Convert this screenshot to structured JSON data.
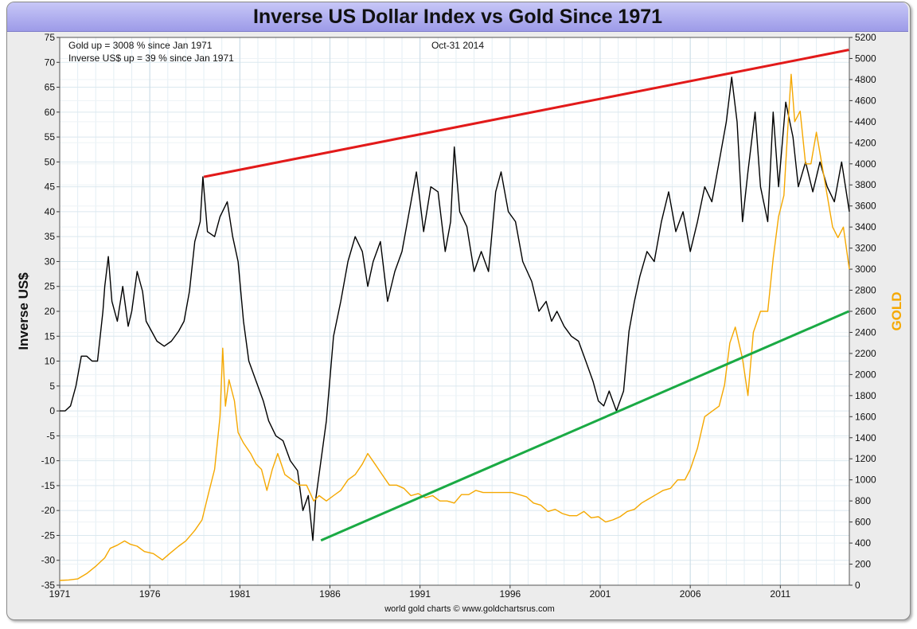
{
  "chart_data": {
    "type": "line",
    "title": "Inverse US Dollar Index vs Gold Since 1971",
    "ylabel_left": "Inverse US$",
    "ylabel_right": "GOLD",
    "ylim_left": [
      -35,
      75
    ],
    "ylim_right": [
      0,
      5200
    ],
    "yticks_left": [
      "75",
      "70",
      "65",
      "60",
      "55",
      "50",
      "45",
      "40",
      "35",
      "30",
      "25",
      "20",
      "15",
      "10",
      "5",
      "0",
      "-5",
      "-10",
      "-15",
      "-20",
      "-25",
      "-30",
      "-35"
    ],
    "yticks_right": [
      "5200",
      "5000",
      "4800",
      "4600",
      "4400",
      "4200",
      "4000",
      "3800",
      "3600",
      "3400",
      "3200",
      "3000",
      "2800",
      "2600",
      "2400",
      "2200",
      "2000",
      "1800",
      "1600",
      "1400",
      "1200",
      "1000",
      "800",
      "600",
      "400",
      "200",
      "0"
    ],
    "xlim": [
      1971,
      2014.83
    ],
    "xticks": [
      "1971",
      "1976",
      "1981",
      "1986",
      "1991",
      "1996",
      "2001",
      "2006",
      "2011"
    ],
    "grid": true,
    "annotations": {
      "line1": "Gold up = 3008 % since Jan 1971",
      "line2": "Inverse US$ up = 39 % since Jan 1971",
      "date": "Oct-31  2014",
      "footer": "world gold charts © www.goldchartsrus.com"
    },
    "series": [
      {
        "color": "#000000",
        "axis": "left",
        "x": [
          1971.0,
          1971.3,
          1971.6,
          1971.9,
          1972.2,
          1972.5,
          1972.8,
          1973.1,
          1973.4,
          1973.5,
          1973.7,
          1973.9,
          1974.2,
          1974.5,
          1974.8,
          1975.0,
          1975.3,
          1975.6,
          1975.8,
          1976.1,
          1976.4,
          1976.8,
          1977.2,
          1977.6,
          1977.9,
          1978.2,
          1978.5,
          1978.8,
          1978.95,
          1979.2,
          1979.6,
          1979.9,
          1980.3,
          1980.6,
          1980.9,
          1981.2,
          1981.5,
          1981.9,
          1982.3,
          1982.6,
          1983.0,
          1983.4,
          1983.8,
          1984.2,
          1984.5,
          1984.8,
          1985.05,
          1985.2,
          1985.5,
          1985.8,
          1986.2,
          1986.6,
          1987.0,
          1987.4,
          1987.8,
          1988.1,
          1988.4,
          1988.8,
          1989.2,
          1989.6,
          1990.0,
          1990.4,
          1990.8,
          1991.0,
          1991.2,
          1991.6,
          1992.0,
          1992.4,
          1992.7,
          1992.9,
          1993.2,
          1993.6,
          1994.0,
          1994.4,
          1994.8,
          1995.2,
          1995.5,
          1995.9,
          1996.3,
          1996.7,
          1997.2,
          1997.6,
          1998.0,
          1998.3,
          1998.6,
          1999.0,
          1999.4,
          1999.8,
          2000.2,
          2000.6,
          2000.9,
          2001.2,
          2001.5,
          2001.9,
          2002.3,
          2002.6,
          2002.9,
          2003.2,
          2003.6,
          2004.0,
          2004.4,
          2004.8,
          2005.2,
          2005.6,
          2006.0,
          2006.4,
          2006.8,
          2007.2,
          2007.6,
          2008.0,
          2008.3,
          2008.6,
          2008.9,
          2009.2,
          2009.6,
          2009.9,
          2010.3,
          2010.6,
          2010.9,
          2011.3,
          2011.7,
          2012.0,
          2012.4,
          2012.8,
          2013.2,
          2013.6,
          2014.0,
          2014.4,
          2014.83
        ],
        "y": [
          0,
          0,
          1,
          5,
          11,
          11,
          10,
          10,
          20,
          25,
          31,
          22,
          18,
          25,
          17,
          20,
          28,
          24,
          18,
          16,
          14,
          13,
          14,
          16,
          18,
          24,
          34,
          38,
          47,
          36,
          35,
          39,
          42,
          35,
          30,
          18,
          10,
          6,
          2,
          -2,
          -5,
          -6,
          -10,
          -12,
          -20,
          -17,
          -26,
          -18,
          -10,
          -2,
          15,
          22,
          30,
          35,
          32,
          25,
          30,
          34,
          22,
          28,
          32,
          40,
          48,
          42,
          36,
          45,
          44,
          32,
          38,
          53,
          40,
          37,
          28,
          32,
          28,
          44,
          48,
          40,
          38,
          30,
          26,
          20,
          22,
          18,
          20,
          17,
          15,
          14,
          10,
          6,
          2,
          1,
          4,
          0,
          4,
          16,
          22,
          27,
          32,
          30,
          38,
          44,
          36,
          40,
          32,
          38,
          45,
          42,
          50,
          58,
          67,
          58,
          38,
          48,
          60,
          45,
          38,
          60,
          45,
          62,
          55,
          45,
          50,
          44,
          50,
          45,
          42,
          50,
          40
        ],
        "name": ""
      },
      {
        "color": "#f5a800",
        "axis": "right",
        "x": [
          1971.0,
          1971.5,
          1972.0,
          1972.5,
          1973.0,
          1973.5,
          1973.8,
          1974.2,
          1974.6,
          1974.9,
          1975.3,
          1975.7,
          1976.2,
          1976.7,
          1977.1,
          1977.6,
          1978.0,
          1978.5,
          1978.9,
          1979.3,
          1979.6,
          1979.9,
          1980.05,
          1980.2,
          1980.4,
          1980.7,
          1980.9,
          1981.2,
          1981.6,
          1981.9,
          1982.2,
          1982.5,
          1982.8,
          1983.1,
          1983.5,
          1983.9,
          1984.3,
          1984.7,
          1985.1,
          1985.4,
          1985.8,
          1986.2,
          1986.6,
          1987.0,
          1987.4,
          1987.8,
          1988.1,
          1988.5,
          1988.9,
          1989.3,
          1989.7,
          1990.1,
          1990.5,
          1990.9,
          1991.3,
          1991.7,
          1992.1,
          1992.5,
          1992.9,
          1993.3,
          1993.7,
          1994.1,
          1994.5,
          1994.9,
          1995.3,
          1995.7,
          1996.1,
          1996.5,
          1996.9,
          1997.3,
          1997.7,
          1998.1,
          1998.5,
          1998.9,
          1999.3,
          1999.7,
          2000.1,
          2000.5,
          2000.9,
          2001.3,
          2001.7,
          2002.1,
          2002.5,
          2002.9,
          2003.3,
          2003.7,
          2004.1,
          2004.5,
          2004.9,
          2005.3,
          2005.7,
          2006.0,
          2006.4,
          2006.8,
          2007.2,
          2007.6,
          2007.9,
          2008.2,
          2008.5,
          2008.9,
          2009.2,
          2009.5,
          2009.9,
          2010.3,
          2010.6,
          2010.9,
          2011.2,
          2011.4,
          2011.6,
          2011.8,
          2012.1,
          2012.4,
          2012.7,
          2013.0,
          2013.3,
          2013.6,
          2013.9,
          2014.2,
          2014.5,
          2014.83
        ],
        "y": [
          45,
          50,
          60,
          110,
          180,
          260,
          350,
          380,
          420,
          390,
          370,
          320,
          300,
          240,
          300,
          370,
          420,
          520,
          620,
          900,
          1100,
          1600,
          2250,
          1700,
          1950,
          1750,
          1450,
          1350,
          1250,
          1150,
          1100,
          900,
          1100,
          1250,
          1050,
          1000,
          950,
          950,
          800,
          850,
          800,
          850,
          900,
          1000,
          1050,
          1150,
          1250,
          1150,
          1050,
          950,
          950,
          920,
          850,
          870,
          830,
          850,
          800,
          800,
          780,
          860,
          860,
          900,
          880,
          880,
          880,
          880,
          880,
          860,
          840,
          780,
          760,
          700,
          720,
          680,
          660,
          660,
          700,
          640,
          650,
          600,
          620,
          650,
          700,
          720,
          780,
          820,
          860,
          900,
          920,
          1000,
          1000,
          1100,
          1300,
          1600,
          1650,
          1700,
          1900,
          2300,
          2450,
          2150,
          1800,
          2400,
          2600,
          2600,
          3100,
          3500,
          3700,
          4300,
          4850,
          4400,
          4500,
          4000,
          4000,
          4300,
          4000,
          3700,
          3400,
          3300,
          3400,
          3000
        ]
      }
    ],
    "trendlines": [
      {
        "color": "#e21a1a",
        "axis": "left",
        "x": [
          1979.0,
          2014.8
        ],
        "y": [
          47,
          72.5
        ]
      },
      {
        "color": "#1aaa44",
        "axis": "left",
        "x": [
          1985.5,
          2014.8
        ],
        "y": [
          -26,
          20
        ]
      }
    ]
  }
}
